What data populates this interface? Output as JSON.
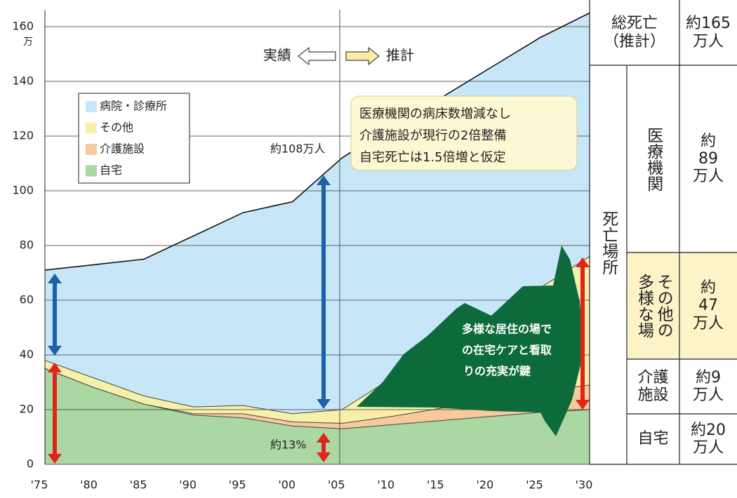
{
  "chart_data": {
    "type": "stacked_area",
    "x": [
      1975,
      1980,
      1985,
      1990,
      1995,
      2000,
      2005,
      2010,
      2015,
      2020,
      2025,
      2030
    ],
    "series": [
      {
        "name": "自宅",
        "color": "#aad7a2",
        "values": [
          35,
          28,
          22,
          18,
          17,
          14,
          13,
          14.5,
          16,
          17.5,
          19,
          20
        ]
      },
      {
        "name": "介護施設",
        "color": "#f8c99c",
        "values": [
          0,
          0,
          0,
          0.5,
          1.5,
          1.5,
          2,
          3,
          4.5,
          6,
          7.5,
          9
        ]
      },
      {
        "name": "その他",
        "color": "#f6f0aa",
        "values": [
          3,
          3.5,
          3,
          2.5,
          3,
          3,
          5,
          14,
          22,
          30,
          38,
          47
        ]
      },
      {
        "name": "病院・診療所",
        "color": "#c7e7f8",
        "values": [
          33,
          41.5,
          50,
          62.5,
          70.5,
          77.5,
          92,
          92,
          91.5,
          91.5,
          91.5,
          89
        ]
      }
    ],
    "xlim": [
      1975,
      2030
    ],
    "ylim": [
      0,
      165
    ],
    "xticks": [
      {
        "value": 1975,
        "label": "'75"
      },
      {
        "value": 1980,
        "label": "'80"
      },
      {
        "value": 1985,
        "label": "'85"
      },
      {
        "value": 1990,
        "label": "'90"
      },
      {
        "value": 1995,
        "label": "'95"
      },
      {
        "value": 2000,
        "label": "'00"
      },
      {
        "value": 2005,
        "label": "'05"
      },
      {
        "value": 2010,
        "label": "'10"
      },
      {
        "value": 2015,
        "label": "'15"
      },
      {
        "value": 2020,
        "label": "'20"
      },
      {
        "value": 2025,
        "label": "'25"
      },
      {
        "value": 2030,
        "label": "'30"
      }
    ],
    "yticks": [
      0,
      20,
      40,
      60,
      80,
      100,
      120,
      140,
      160
    ],
    "y_unit": "万",
    "grid": true,
    "period_labels": [
      "実績",
      "推計"
    ],
    "annotations": [
      "約108万人",
      "約13%"
    ],
    "note": [
      "医療機関の病床数増減なし",
      "介護施設が現行の2倍整備",
      "自宅死亡は1.5倍増と仮定"
    ],
    "callout": [
      "多様な居住の場で",
      "の在宅ケアと看取",
      "りの充実が鍵"
    ]
  },
  "side_table": {
    "place_header": "死亡場所",
    "total": {
      "label": [
        "総死亡",
        "（推計）"
      ],
      "value": [
        "約165",
        "万人"
      ]
    },
    "rows": [
      {
        "label": [
          "医療機関"
        ],
        "value": [
          "約",
          "89",
          "万人"
        ]
      },
      {
        "label": [
          "その他の",
          "多様な場"
        ],
        "value": [
          "約",
          "47",
          "万人"
        ]
      },
      {
        "label": [
          "介護",
          "施設"
        ],
        "value": [
          "約9",
          "万人"
        ]
      },
      {
        "label": [
          "自宅"
        ],
        "value": [
          "約20",
          "万人"
        ]
      }
    ]
  }
}
